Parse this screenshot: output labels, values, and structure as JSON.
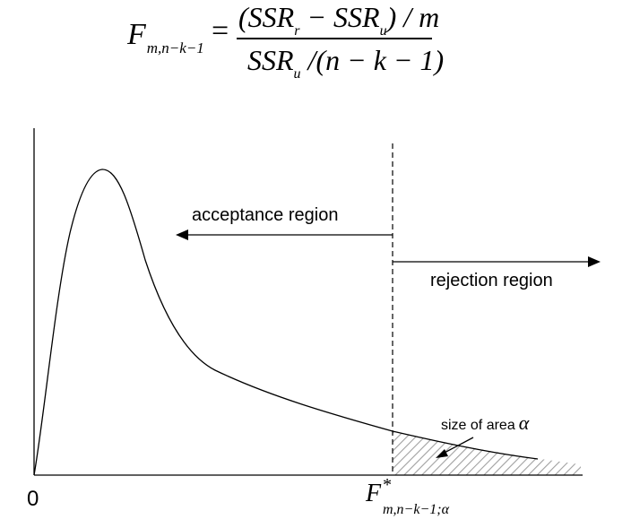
{
  "formula": {
    "lhs_symbol": "F",
    "lhs_subscript": "m,n−k−1",
    "equals": "=",
    "numerator": "(SSR",
    "numerator_sub_r": "r",
    "numerator_mid": " − SSR",
    "numerator_sub_u": "u",
    "numerator_end": ") / m",
    "denominator_start": "SSR",
    "denominator_sub_u": "u",
    "denominator_end": " /(n − k − 1)"
  },
  "diagram": {
    "origin_label": "0",
    "acceptance_label": "acceptance region",
    "rejection_label": "rejection region",
    "area_label": "size of area",
    "area_symbol": "α",
    "critical_symbol": "F",
    "critical_superscript": "*",
    "critical_subscript": "m,n−k−1;α"
  },
  "colors": {
    "line": "#000000",
    "hatch": "#a0a0a0",
    "background": "#ffffff"
  }
}
